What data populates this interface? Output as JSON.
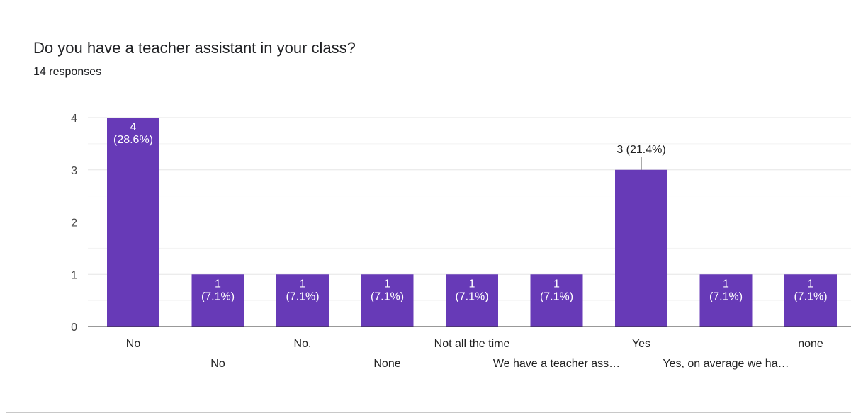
{
  "header": {
    "title": "Do you have a teacher assistant in your class?",
    "responses": "14 responses"
  },
  "colors": {
    "bar": "#673ab7",
    "grid": "#e6e6e6",
    "axis": "#333333"
  },
  "chart_data": {
    "type": "bar",
    "categories": [
      "No",
      "No",
      "No.",
      "None",
      "Not all the time",
      "We have a teacher ass…",
      "Yes",
      "Yes, on average we ha…",
      "none"
    ],
    "values": [
      4,
      1,
      1,
      1,
      1,
      1,
      3,
      1,
      1
    ],
    "data_labels": [
      [
        "4",
        "(28.6%)"
      ],
      [
        "1",
        "(7.1%)"
      ],
      [
        "1",
        "(7.1%)"
      ],
      [
        "1",
        "(7.1%)"
      ],
      [
        "1",
        "(7.1%)"
      ],
      [
        "1",
        "(7.1%)"
      ],
      [
        "3 (21.4%)"
      ],
      [
        "1",
        "(7.1%)"
      ],
      [
        "1",
        "(7.1%)"
      ]
    ],
    "yticks": [
      "0",
      "1",
      "2",
      "3",
      "4"
    ],
    "ylim": [
      0,
      4
    ],
    "grid": true
  }
}
